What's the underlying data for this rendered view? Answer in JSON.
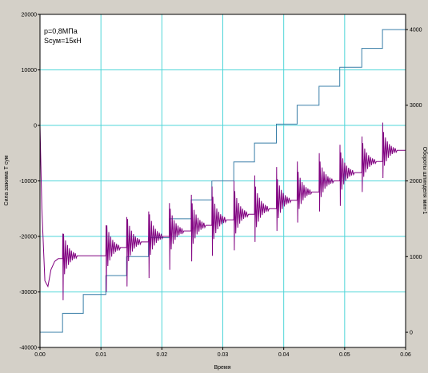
{
  "chart_data": {
    "type": "line",
    "title": "",
    "xlabel": "Время",
    "ylabel_left": "Сила зажима Т сум",
    "ylabel_right": "Обороты шпинделя мин-1",
    "xlim": [
      0.0,
      0.06
    ],
    "ylim_left": [
      -40000,
      20000
    ],
    "ylim_right": [
      -200,
      4200
    ],
    "x_ticks": [
      "0.00",
      "0.01",
      "0.02",
      "0.03",
      "0.04",
      "0.05",
      "0.06"
    ],
    "y_left_ticks": [
      "20000",
      "10000",
      "0",
      "-10000",
      "-20000",
      "-30000",
      "-40000"
    ],
    "y_right_ticks": [
      "4000",
      "3000",
      "2000",
      "1000",
      "0"
    ],
    "grid": true,
    "annotations": [
      "p=0,8МПа",
      "Sсум=15кН"
    ],
    "colors": {
      "force": "#800080",
      "speed": "#3a7fa8",
      "grid": "#4fd5d8",
      "background": "#ffffff",
      "frame": "#d4d0c8"
    },
    "series": [
      {
        "axis": "right",
        "values_x": [
          0.0,
          0.0037,
          0.0037,
          0.0071,
          0.0071,
          0.0108,
          0.0108,
          0.0142,
          0.0142,
          0.0178,
          0.0178,
          0.0212,
          0.0212,
          0.0248,
          0.0248,
          0.0282,
          0.0282,
          0.0318,
          0.0318,
          0.0352,
          0.0352,
          0.0388,
          0.0388,
          0.0422,
          0.0422,
          0.0458,
          0.0458,
          0.0492,
          0.0492,
          0.0528,
          0.0528,
          0.0562,
          0.0562,
          0.06
        ],
        "values_y": [
          0,
          0,
          250,
          250,
          500,
          500,
          750,
          750,
          1000,
          1000,
          1250,
          1250,
          1500,
          1500,
          1750,
          1750,
          2000,
          2000,
          2250,
          2250,
          2500,
          2500,
          2750,
          2750,
          3000,
          3000,
          3250,
          3250,
          3500,
          3500,
          3750,
          3750,
          4000,
          4000
        ]
      },
      {
        "axis": "left",
        "start": {
          "x": [
            0.0,
            0.0003,
            0.0008,
            0.0013,
            0.0018,
            0.0024,
            0.003,
            0.0037
          ],
          "y": [
            0,
            -15000,
            -28000,
            -29000,
            -26000,
            -24500,
            -24000,
            -24000
          ]
        },
        "steps": [
          {
            "x": 0.0037,
            "level": -23500,
            "peak": -19500,
            "trough": -31500
          },
          {
            "x": 0.0108,
            "level": -22000,
            "peak": -18000,
            "trough": -30000
          },
          {
            "x": 0.0142,
            "level": -21000,
            "peak": -16500,
            "trough": -29000
          },
          {
            "x": 0.0178,
            "level": -20000,
            "peak": -15500,
            "trough": -27500
          },
          {
            "x": 0.0212,
            "level": -19000,
            "peak": -14000,
            "trough": -26000
          },
          {
            "x": 0.0248,
            "level": -18000,
            "peak": -12500,
            "trough": -24500
          },
          {
            "x": 0.0282,
            "level": -17000,
            "peak": -11000,
            "trough": -23500
          },
          {
            "x": 0.0318,
            "level": -16000,
            "peak": -10000,
            "trough": -22500
          },
          {
            "x": 0.0352,
            "level": -15000,
            "peak": -9000,
            "trough": -21000
          },
          {
            "x": 0.0388,
            "level": -13500,
            "peak": -7500,
            "trough": -19000
          },
          {
            "x": 0.0422,
            "level": -12000,
            "peak": -6500,
            "trough": -17500
          },
          {
            "x": 0.0458,
            "level": -10000,
            "peak": -5000,
            "trough": -15500
          },
          {
            "x": 0.0492,
            "level": -8500,
            "peak": -3500,
            "trough": -14500
          },
          {
            "x": 0.0528,
            "level": -6500,
            "peak": -2000,
            "trough": -12000
          },
          {
            "x": 0.0562,
            "level": -4500,
            "peak": 500,
            "trough": -9500
          }
        ]
      }
    ]
  }
}
